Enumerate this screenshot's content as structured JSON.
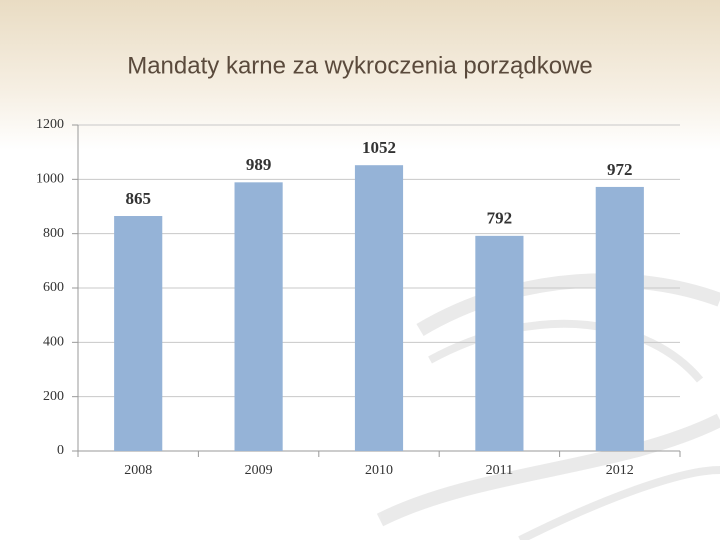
{
  "chart_data": {
    "type": "bar",
    "title": "Mandaty karne za wykroczenia porządkowe",
    "categories": [
      "2008",
      "2009",
      "2010",
      "2011",
      "2012"
    ],
    "values": [
      865,
      989,
      1052,
      792,
      972
    ],
    "color": "#95b3d7",
    "ylim": [
      0,
      1200
    ],
    "yticks": [
      0,
      200,
      400,
      600,
      800,
      1000,
      1200
    ],
    "grid": true
  }
}
